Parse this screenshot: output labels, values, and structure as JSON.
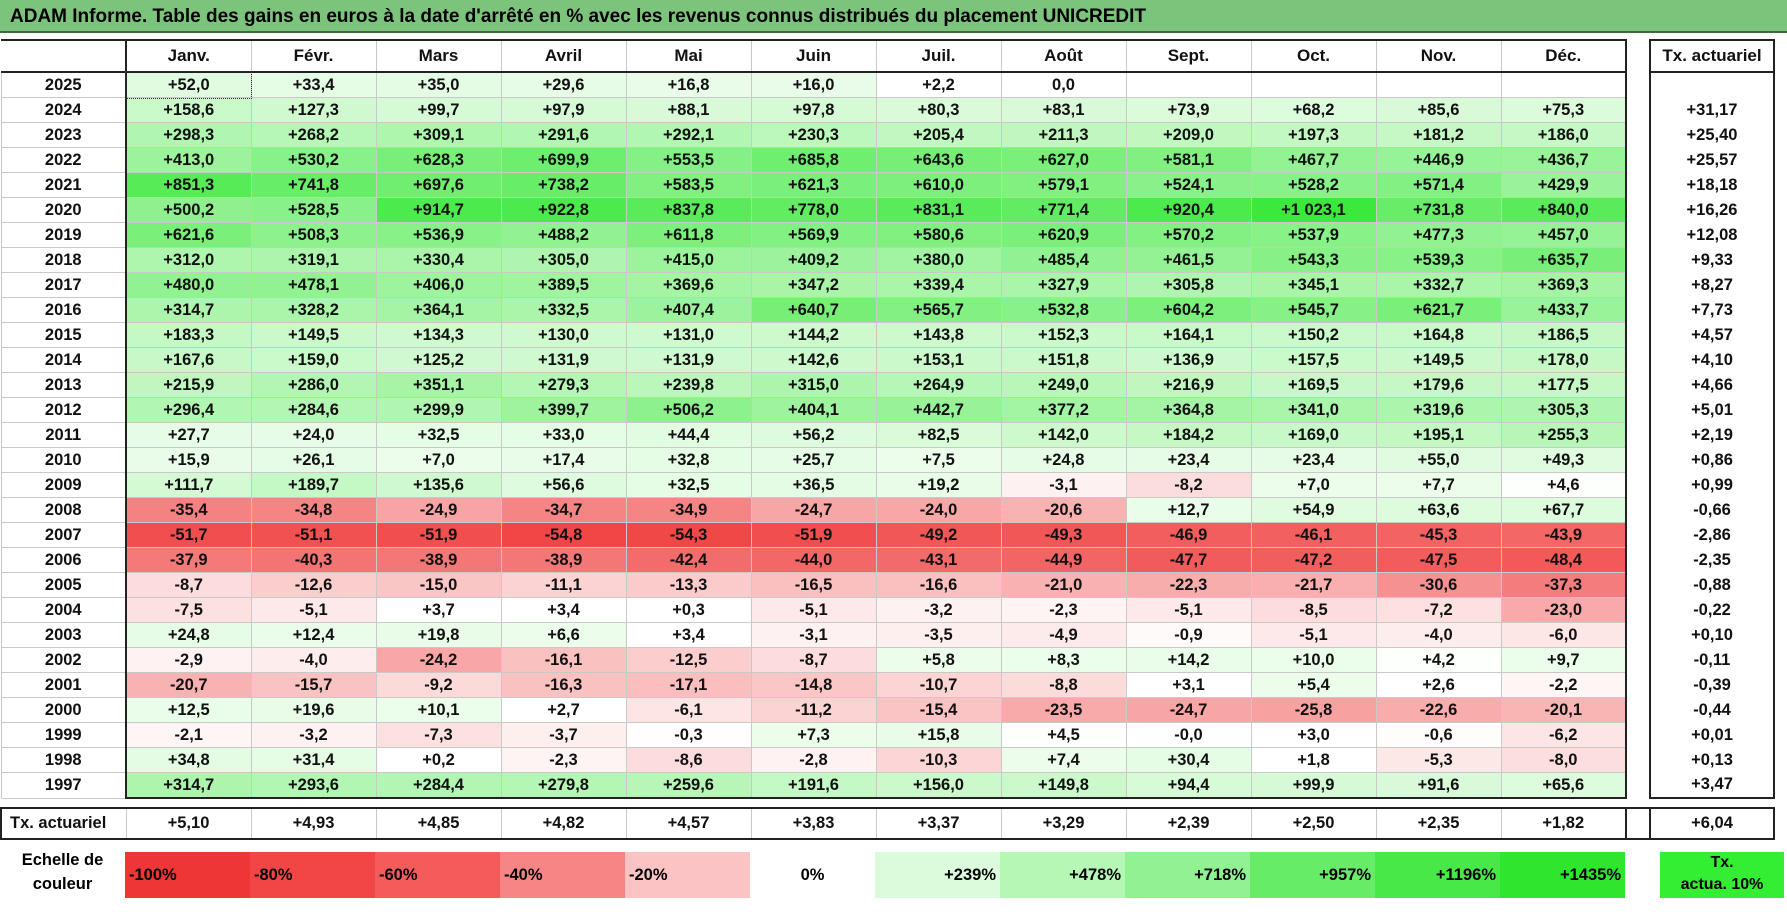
{
  "title": "ADAM Informe. Table des gains en euros à la date d'arrêté en % avec les revenus connus distribués du placement UNICREDIT",
  "months": [
    "Janv.",
    "Févr.",
    "Mars",
    "Avril",
    "Mai",
    "Juin",
    "Juil.",
    "Août",
    "Sept.",
    "Oct.",
    "Nov.",
    "Déc."
  ],
  "annual_header": "Tx. actuariel",
  "rows": [
    {
      "year": "2025",
      "values": [
        "+52,0",
        "+33,4",
        "+35,0",
        "+29,6",
        "+16,8",
        "+16,0",
        "+2,2",
        "0,0",
        "",
        "",
        "",
        ""
      ],
      "annual": ""
    },
    {
      "year": "2024",
      "values": [
        "+158,6",
        "+127,3",
        "+99,7",
        "+97,9",
        "+88,1",
        "+97,8",
        "+80,3",
        "+83,1",
        "+73,9",
        "+68,2",
        "+85,6",
        "+75,3"
      ],
      "annual": "+31,17"
    },
    {
      "year": "2023",
      "values": [
        "+298,3",
        "+268,2",
        "+309,1",
        "+291,6",
        "+292,1",
        "+230,3",
        "+205,4",
        "+211,3",
        "+209,0",
        "+197,3",
        "+181,2",
        "+186,0"
      ],
      "annual": "+25,40"
    },
    {
      "year": "2022",
      "values": [
        "+413,0",
        "+530,2",
        "+628,3",
        "+699,9",
        "+553,5",
        "+685,8",
        "+643,6",
        "+627,0",
        "+581,1",
        "+467,7",
        "+446,9",
        "+436,7"
      ],
      "annual": "+25,57"
    },
    {
      "year": "2021",
      "values": [
        "+851,3",
        "+741,8",
        "+697,6",
        "+738,2",
        "+583,5",
        "+621,3",
        "+610,0",
        "+579,1",
        "+524,1",
        "+528,2",
        "+571,4",
        "+429,9"
      ],
      "annual": "+18,18"
    },
    {
      "year": "2020",
      "values": [
        "+500,2",
        "+528,5",
        "+914,7",
        "+922,8",
        "+837,8",
        "+778,0",
        "+831,1",
        "+771,4",
        "+920,4",
        "+1 023,1",
        "+731,8",
        "+840,0"
      ],
      "annual": "+16,26"
    },
    {
      "year": "2019",
      "values": [
        "+621,6",
        "+508,3",
        "+536,9",
        "+488,2",
        "+611,8",
        "+569,9",
        "+580,6",
        "+620,9",
        "+570,2",
        "+537,9",
        "+477,3",
        "+457,0"
      ],
      "annual": "+12,08"
    },
    {
      "year": "2018",
      "values": [
        "+312,0",
        "+319,1",
        "+330,4",
        "+305,0",
        "+415,0",
        "+409,2",
        "+380,0",
        "+485,4",
        "+461,5",
        "+543,3",
        "+539,3",
        "+635,7"
      ],
      "annual": "+9,33"
    },
    {
      "year": "2017",
      "values": [
        "+480,0",
        "+478,1",
        "+406,0",
        "+389,5",
        "+369,6",
        "+347,2",
        "+339,4",
        "+327,9",
        "+305,8",
        "+345,1",
        "+332,7",
        "+369,3"
      ],
      "annual": "+8,27"
    },
    {
      "year": "2016",
      "values": [
        "+314,7",
        "+328,2",
        "+364,1",
        "+332,5",
        "+407,4",
        "+640,7",
        "+565,7",
        "+532,8",
        "+604,2",
        "+545,7",
        "+621,7",
        "+433,7"
      ],
      "annual": "+7,73"
    },
    {
      "year": "2015",
      "values": [
        "+183,3",
        "+149,5",
        "+134,3",
        "+130,0",
        "+131,0",
        "+144,2",
        "+143,8",
        "+152,3",
        "+164,1",
        "+150,2",
        "+164,8",
        "+186,5"
      ],
      "annual": "+4,57"
    },
    {
      "year": "2014",
      "values": [
        "+167,6",
        "+159,0",
        "+125,2",
        "+131,9",
        "+131,9",
        "+142,6",
        "+153,1",
        "+151,8",
        "+136,9",
        "+157,5",
        "+149,5",
        "+178,0"
      ],
      "annual": "+4,10"
    },
    {
      "year": "2013",
      "values": [
        "+215,9",
        "+286,0",
        "+351,1",
        "+279,3",
        "+239,8",
        "+315,0",
        "+264,9",
        "+249,0",
        "+216,9",
        "+169,5",
        "+179,6",
        "+177,5"
      ],
      "annual": "+4,66"
    },
    {
      "year": "2012",
      "values": [
        "+296,4",
        "+284,6",
        "+299,9",
        "+399,7",
        "+506,2",
        "+404,1",
        "+442,7",
        "+377,2",
        "+364,8",
        "+341,0",
        "+319,6",
        "+305,3"
      ],
      "annual": "+5,01"
    },
    {
      "year": "2011",
      "values": [
        "+27,7",
        "+24,0",
        "+32,5",
        "+33,0",
        "+44,4",
        "+56,2",
        "+82,5",
        "+142,0",
        "+184,2",
        "+169,0",
        "+195,1",
        "+255,3"
      ],
      "annual": "+2,19"
    },
    {
      "year": "2010",
      "values": [
        "+15,9",
        "+26,1",
        "+7,0",
        "+17,4",
        "+32,8",
        "+25,7",
        "+7,5",
        "+24,8",
        "+23,4",
        "+23,4",
        "+55,0",
        "+49,3"
      ],
      "annual": "+0,86"
    },
    {
      "year": "2009",
      "values": [
        "+111,7",
        "+189,7",
        "+135,6",
        "+56,6",
        "+32,5",
        "+36,5",
        "+19,2",
        "-3,1",
        "-8,2",
        "+7,0",
        "+7,7",
        "+4,6"
      ],
      "annual": "+0,99"
    },
    {
      "year": "2008",
      "values": [
        "-35,4",
        "-34,8",
        "-24,9",
        "-34,7",
        "-34,9",
        "-24,7",
        "-24,0",
        "-20,6",
        "+12,7",
        "+54,9",
        "+63,6",
        "+67,7"
      ],
      "annual": "-0,66"
    },
    {
      "year": "2007",
      "values": [
        "-51,7",
        "-51,1",
        "-51,9",
        "-54,8",
        "-54,3",
        "-51,9",
        "-49,2",
        "-49,3",
        "-46,9",
        "-46,1",
        "-45,3",
        "-43,9"
      ],
      "annual": "-2,86"
    },
    {
      "year": "2006",
      "values": [
        "-37,9",
        "-40,3",
        "-38,9",
        "-38,9",
        "-42,4",
        "-44,0",
        "-43,1",
        "-44,9",
        "-47,7",
        "-47,2",
        "-47,5",
        "-48,4"
      ],
      "annual": "-2,35"
    },
    {
      "year": "2005",
      "values": [
        "-8,7",
        "-12,6",
        "-15,0",
        "-11,1",
        "-13,3",
        "-16,5",
        "-16,6",
        "-21,0",
        "-22,3",
        "-21,7",
        "-30,6",
        "-37,3"
      ],
      "annual": "-0,88"
    },
    {
      "year": "2004",
      "values": [
        "-7,5",
        "-5,1",
        "+3,7",
        "+3,4",
        "+0,3",
        "-5,1",
        "-3,2",
        "-2,3",
        "-5,1",
        "-8,5",
        "-7,2",
        "-23,0"
      ],
      "annual": "-0,22"
    },
    {
      "year": "2003",
      "values": [
        "+24,8",
        "+12,4",
        "+19,8",
        "+6,6",
        "+3,4",
        "-3,1",
        "-3,5",
        "-4,9",
        "-0,9",
        "-5,1",
        "-4,0",
        "-6,0"
      ],
      "annual": "+0,10"
    },
    {
      "year": "2002",
      "values": [
        "-2,9",
        "-4,0",
        "-24,2",
        "-16,1",
        "-12,5",
        "-8,7",
        "+5,8",
        "+8,3",
        "+14,2",
        "+10,0",
        "+4,2",
        "+9,7"
      ],
      "annual": "-0,11"
    },
    {
      "year": "2001",
      "values": [
        "-20,7",
        "-15,7",
        "-9,2",
        "-16,3",
        "-17,1",
        "-14,8",
        "-10,7",
        "-8,8",
        "+3,1",
        "+5,4",
        "+2,6",
        "-2,2"
      ],
      "annual": "-0,39"
    },
    {
      "year": "2000",
      "values": [
        "+12,5",
        "+19,6",
        "+10,1",
        "+2,7",
        "-6,1",
        "-11,2",
        "-15,4",
        "-23,5",
        "-24,7",
        "-25,8",
        "-22,6",
        "-20,1"
      ],
      "annual": "-0,44"
    },
    {
      "year": "1999",
      "values": [
        "-2,1",
        "-3,2",
        "-7,3",
        "-3,7",
        "-0,3",
        "+7,3",
        "+15,8",
        "+4,5",
        "-0,0",
        "+3,0",
        "-0,6",
        "-6,2"
      ],
      "annual": "+0,01"
    },
    {
      "year": "1998",
      "values": [
        "+34,8",
        "+31,4",
        "+0,2",
        "-2,3",
        "-8,6",
        "-2,8",
        "-10,3",
        "+7,4",
        "+30,4",
        "+1,8",
        "-5,3",
        "-8,0"
      ],
      "annual": "+0,13"
    },
    {
      "year": "1997",
      "values": [
        "+314,7",
        "+293,6",
        "+284,4",
        "+279,8",
        "+259,6",
        "+191,6",
        "+156,0",
        "+149,8",
        "+94,4",
        "+99,9",
        "+91,6",
        "+65,6"
      ],
      "annual": "+3,47"
    }
  ],
  "actuarial_row": {
    "label": "Tx. actuariel",
    "values": [
      "+5,10",
      "+4,93",
      "+4,85",
      "+4,82",
      "+4,57",
      "+3,83",
      "+3,37",
      "+3,29",
      "+2,39",
      "+2,50",
      "+2,35",
      "+1,82"
    ],
    "annual": "+6,04"
  },
  "legend": {
    "label_line1": "Echelle de",
    "label_line2": "couleur",
    "steps": [
      {
        "label": "-100%",
        "color": "#ef3636"
      },
      {
        "label": "-80%",
        "color": "#f24545"
      },
      {
        "label": "-60%",
        "color": "#f45c5c"
      },
      {
        "label": "-40%",
        "color": "#f88585"
      },
      {
        "label": "-20%",
        "color": "#fbc3c3"
      },
      {
        "label": "0%",
        "color": "#ffffff"
      },
      {
        "label": "+239%",
        "color": "#dcfbdc"
      },
      {
        "label": "+478%",
        "color": "#b6f7b6"
      },
      {
        "label": "+718%",
        "color": "#90f290"
      },
      {
        "label": "+957%",
        "color": "#67ec67"
      },
      {
        "label": "+1196%",
        "color": "#47e847"
      },
      {
        "label": "+1435%",
        "color": "#2ee62e"
      }
    ],
    "annual_swatch_line1": "Tx.",
    "annual_swatch_line2": "actua. 10%",
    "annual_swatch_color": "#33ee33"
  },
  "colors": {
    "title_bg": "#7cc47c",
    "scale_pos_max": "#2ee62e",
    "scale_neg_max": "#ef3636"
  }
}
